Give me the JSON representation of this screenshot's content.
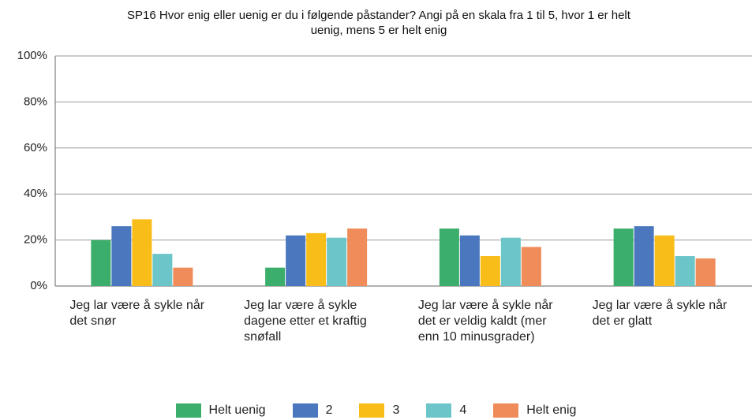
{
  "chart_data": {
    "type": "bar",
    "title": "SP16 Hvor enig eller uenig er du i følgende påstander? Angi på en skala fra 1 til 5, hvor 1 er helt uenig, mens 5 er helt enig",
    "categories": [
      "Jeg lar være å sykle når det snør",
      "Jeg lar være å sykle dagene etter et kraftig snøfall",
      "Jeg lar være å sykle når det er veldig kaldt (mer enn 10 minusgrader)",
      "Jeg lar være å sykle når det er glatt"
    ],
    "series": [
      {
        "name": "Helt uenig",
        "color": "#3aae6a",
        "values": [
          20,
          8,
          25,
          25
        ]
      },
      {
        "name": "2",
        "color": "#4a77bd",
        "values": [
          26,
          22,
          22,
          26
        ]
      },
      {
        "name": "3",
        "color": "#f9bd1a",
        "values": [
          29,
          23,
          13,
          22
        ]
      },
      {
        "name": "4",
        "color": "#6cc5c8",
        "values": [
          14,
          21,
          21,
          13
        ]
      },
      {
        "name": "Helt enig",
        "color": "#f08c5a",
        "values": [
          8,
          25,
          17,
          12
        ]
      }
    ],
    "ylim": [
      0,
      100
    ],
    "yticks": [
      {
        "value": 0,
        "label": "0%"
      },
      {
        "value": 20,
        "label": "20%"
      },
      {
        "value": 40,
        "label": "40%"
      },
      {
        "value": 60,
        "label": "60%"
      },
      {
        "value": 80,
        "label": "80%"
      },
      {
        "value": 100,
        "label": "100%"
      }
    ],
    "grid": true
  }
}
